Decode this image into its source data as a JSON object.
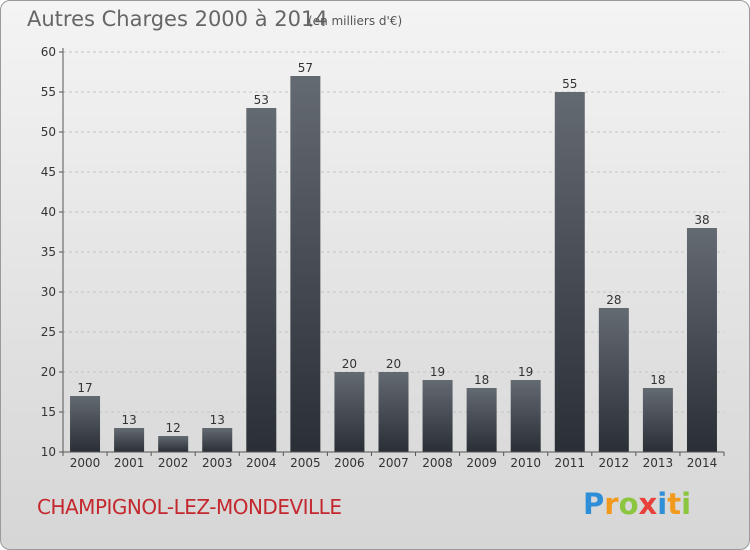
{
  "header": {
    "title": "Autres Charges 2000 à 2014",
    "subtitle": "(en milliers d'€)"
  },
  "footer": {
    "town": "CHAMPIGNOL-LEZ-MONDEVILLE",
    "logo_letters": [
      {
        "ch": "P",
        "color": "#2e8fd8"
      },
      {
        "ch": "r",
        "color": "#f29a1e"
      },
      {
        "ch": "o",
        "color": "#8cc63e"
      },
      {
        "ch": "x",
        "color": "#e8413b"
      },
      {
        "ch": "i",
        "color": "#2e8fd8"
      },
      {
        "ch": "t",
        "color": "#f29a1e"
      },
      {
        "ch": "i",
        "color": "#8cc63e"
      }
    ]
  },
  "chart_data": {
    "type": "bar",
    "title": "Autres Charges 2000 à 2014",
    "subtitle": "(en milliers d'€)",
    "categories": [
      "2000",
      "2001",
      "2002",
      "2003",
      "2004",
      "2005",
      "2006",
      "2007",
      "2008",
      "2009",
      "2010",
      "2011",
      "2012",
      "2013",
      "2014"
    ],
    "values": [
      17,
      13,
      12,
      13,
      53,
      57,
      20,
      20,
      19,
      18,
      19,
      55,
      28,
      18,
      38
    ],
    "ylim": [
      10,
      60
    ],
    "yticks": [
      10,
      15,
      20,
      25,
      30,
      35,
      40,
      45,
      50,
      55,
      60
    ],
    "grid": true,
    "bar_color_top": "#646a72",
    "bar_color_bottom": "#2a2f36"
  }
}
